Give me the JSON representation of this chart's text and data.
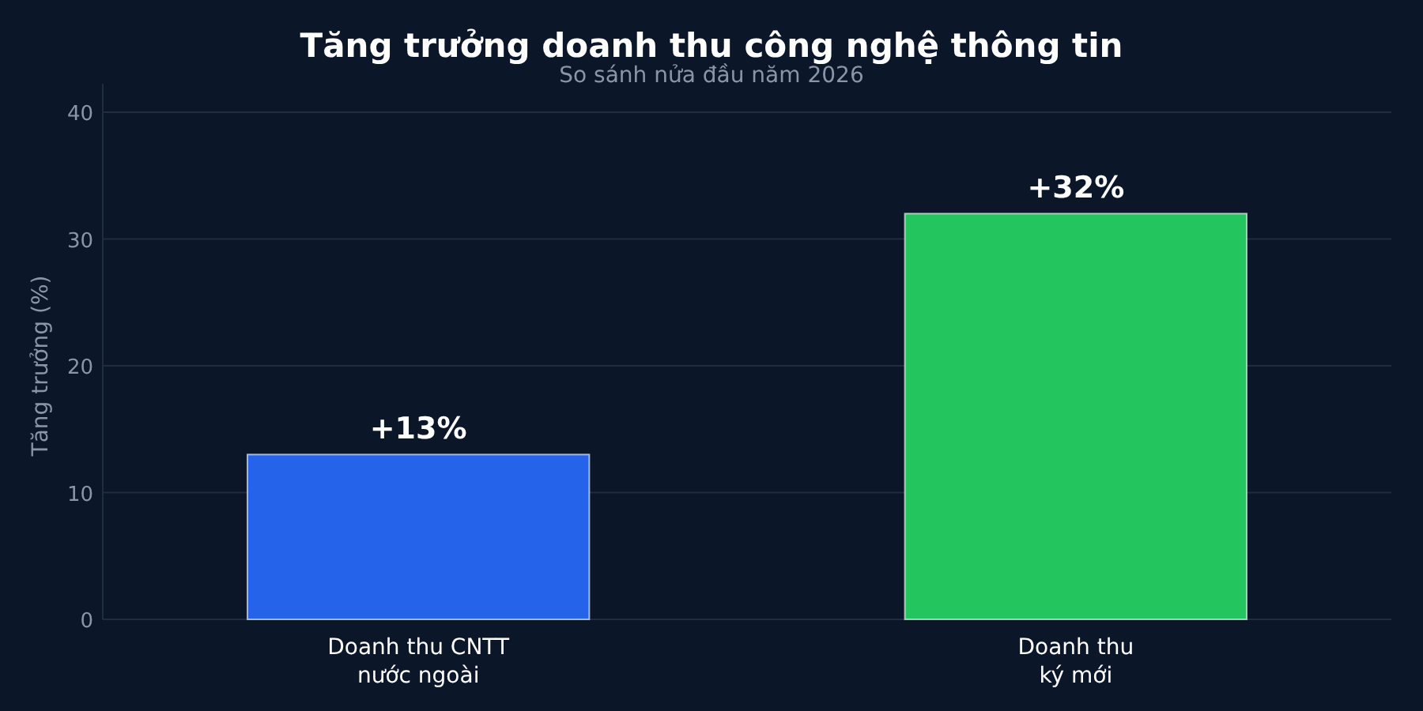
{
  "chart_data": {
    "type": "bar",
    "title": "Tăng trưởng doanh thu công nghệ thông tin",
    "subtitle": "So sánh nửa đầu năm 2026",
    "ylabel": "Tăng trưởng (%)",
    "categories": [
      "Doanh thu CNTT nước ngoài",
      "Doanh thu ký mới"
    ],
    "values": [
      13,
      32
    ],
    "colors": [
      "#2563eb",
      "#22c55e"
    ],
    "value_labels": [
      "+13%",
      "+32%"
    ],
    "ylim": [
      0,
      40
    ],
    "yticks": [
      0,
      10,
      20,
      30,
      40
    ],
    "grid": "y"
  }
}
